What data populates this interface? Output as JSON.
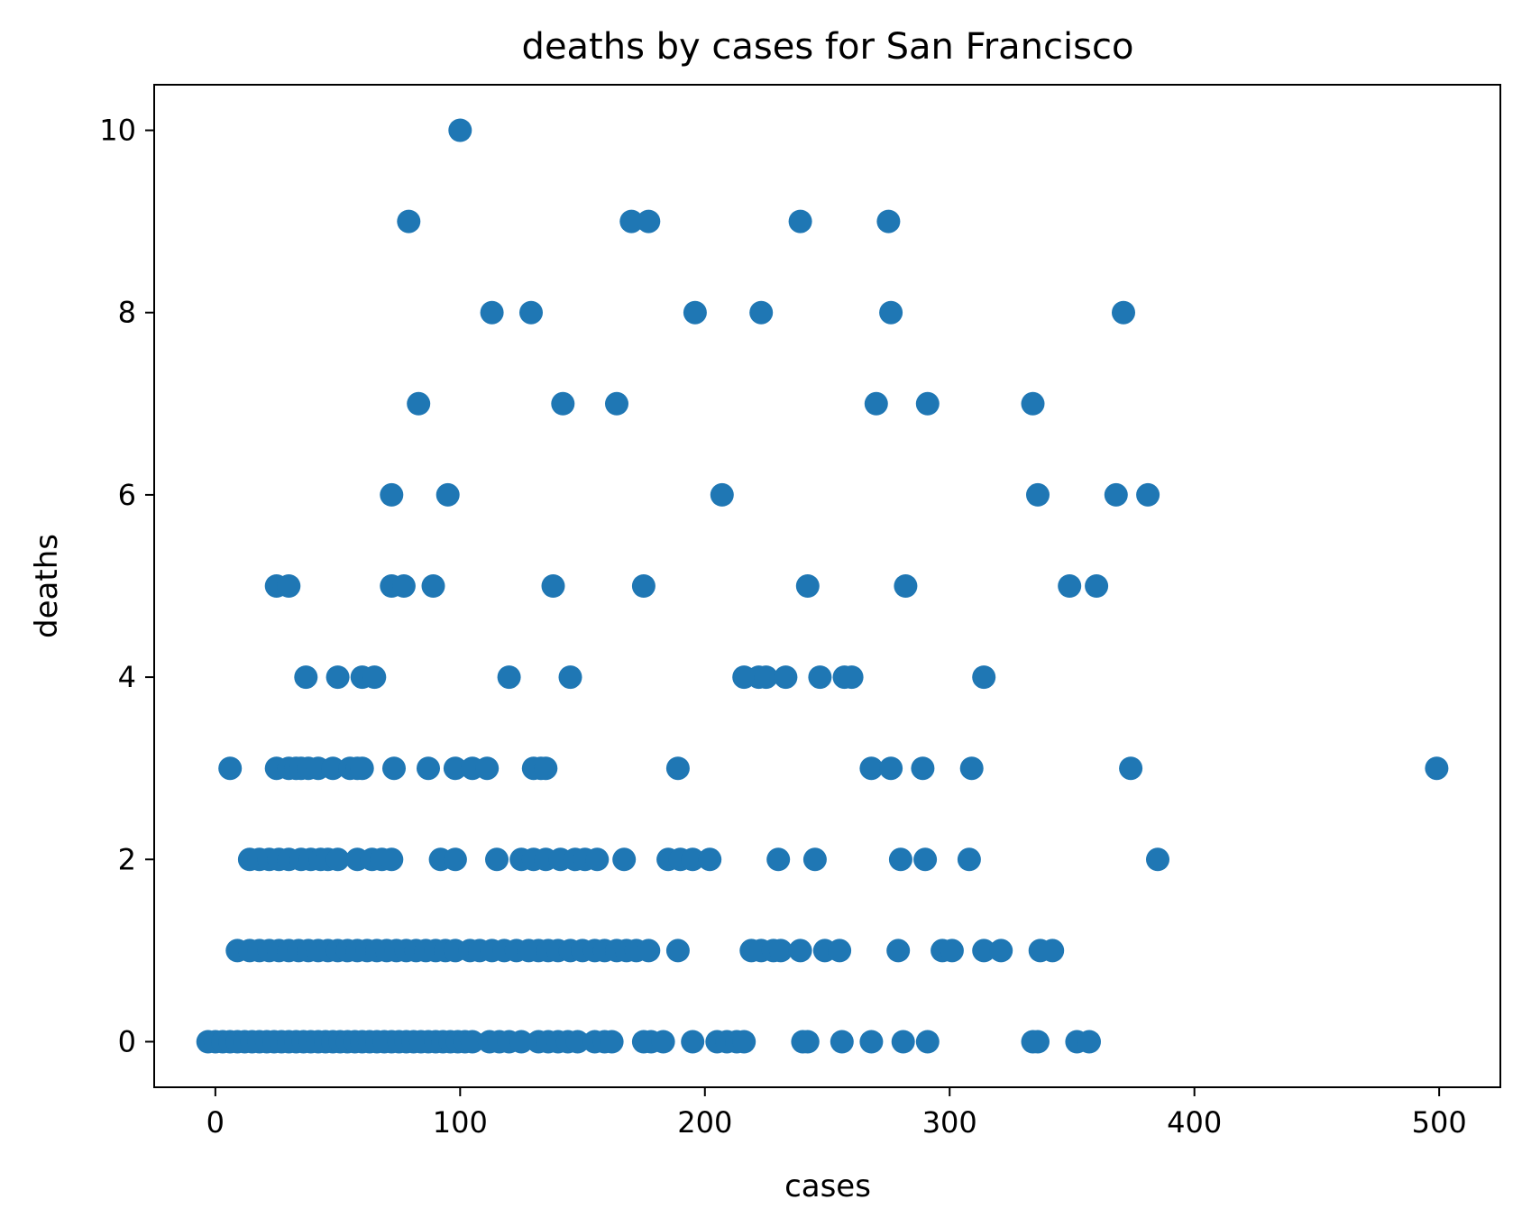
{
  "chart_data": {
    "type": "scatter",
    "title": "deaths by cases for San Francisco",
    "xlabel": "cases",
    "ylabel": "deaths",
    "xlim": [
      -25,
      525
    ],
    "ylim": [
      -0.5,
      10.5
    ],
    "xticks": [
      0,
      100,
      200,
      300,
      400,
      500
    ],
    "yticks": [
      0,
      2,
      4,
      6,
      8,
      10
    ],
    "grid": false,
    "legend": "none",
    "marker_color": "#1f77b4",
    "series": [
      {
        "points": [
          [
            100,
            10
          ],
          [
            79,
            9
          ],
          [
            170,
            9
          ],
          [
            177,
            9
          ],
          [
            239,
            9
          ],
          [
            275,
            9
          ],
          [
            113,
            8
          ],
          [
            129,
            8
          ],
          [
            196,
            8
          ],
          [
            223,
            8
          ],
          [
            276,
            8
          ],
          [
            371,
            8
          ],
          [
            83,
            7
          ],
          [
            142,
            7
          ],
          [
            164,
            7
          ],
          [
            270,
            7
          ],
          [
            291,
            7
          ],
          [
            334,
            7
          ],
          [
            72,
            6
          ],
          [
            95,
            6
          ],
          [
            207,
            6
          ],
          [
            336,
            6
          ],
          [
            368,
            6
          ],
          [
            381,
            6
          ],
          [
            25,
            5
          ],
          [
            30,
            5
          ],
          [
            72,
            5
          ],
          [
            77,
            5
          ],
          [
            89,
            5
          ],
          [
            138,
            5
          ],
          [
            175,
            5
          ],
          [
            242,
            5
          ],
          [
            282,
            5
          ],
          [
            349,
            5
          ],
          [
            360,
            5
          ],
          [
            37,
            4
          ],
          [
            50,
            4
          ],
          [
            60,
            4
          ],
          [
            65,
            4
          ],
          [
            120,
            4
          ],
          [
            145,
            4
          ],
          [
            216,
            4
          ],
          [
            222,
            4
          ],
          [
            225,
            4
          ],
          [
            233,
            4
          ],
          [
            247,
            4
          ],
          [
            257,
            4
          ],
          [
            260,
            4
          ],
          [
            314,
            4
          ],
          [
            6,
            3
          ],
          [
            25,
            3
          ],
          [
            30,
            3
          ],
          [
            33,
            3
          ],
          [
            35,
            3
          ],
          [
            38,
            3
          ],
          [
            42,
            3
          ],
          [
            48,
            3
          ],
          [
            55,
            3
          ],
          [
            58,
            3
          ],
          [
            60,
            3
          ],
          [
            73,
            3
          ],
          [
            87,
            3
          ],
          [
            98,
            3
          ],
          [
            105,
            3
          ],
          [
            111,
            3
          ],
          [
            130,
            3
          ],
          [
            133,
            3
          ],
          [
            135,
            3
          ],
          [
            189,
            3
          ],
          [
            268,
            3
          ],
          [
            276,
            3
          ],
          [
            289,
            3
          ],
          [
            309,
            3
          ],
          [
            374,
            3
          ],
          [
            499,
            3
          ],
          [
            14,
            2
          ],
          [
            18,
            2
          ],
          [
            22,
            2
          ],
          [
            26,
            2
          ],
          [
            30,
            2
          ],
          [
            35,
            2
          ],
          [
            39,
            2
          ],
          [
            43,
            2
          ],
          [
            46,
            2
          ],
          [
            50,
            2
          ],
          [
            58,
            2
          ],
          [
            64,
            2
          ],
          [
            68,
            2
          ],
          [
            72,
            2
          ],
          [
            92,
            2
          ],
          [
            98,
            2
          ],
          [
            115,
            2
          ],
          [
            125,
            2
          ],
          [
            130,
            2
          ],
          [
            135,
            2
          ],
          [
            141,
            2
          ],
          [
            147,
            2
          ],
          [
            151,
            2
          ],
          [
            156,
            2
          ],
          [
            167,
            2
          ],
          [
            185,
            2
          ],
          [
            190,
            2
          ],
          [
            195,
            2
          ],
          [
            202,
            2
          ],
          [
            230,
            2
          ],
          [
            245,
            2
          ],
          [
            280,
            2
          ],
          [
            290,
            2
          ],
          [
            308,
            2
          ],
          [
            385,
            2
          ],
          [
            9,
            1
          ],
          [
            14,
            1
          ],
          [
            18,
            1
          ],
          [
            22,
            1
          ],
          [
            26,
            1
          ],
          [
            30,
            1
          ],
          [
            34,
            1
          ],
          [
            38,
            1
          ],
          [
            42,
            1
          ],
          [
            46,
            1
          ],
          [
            50,
            1
          ],
          [
            54,
            1
          ],
          [
            58,
            1
          ],
          [
            62,
            1
          ],
          [
            66,
            1
          ],
          [
            70,
            1
          ],
          [
            74,
            1
          ],
          [
            78,
            1
          ],
          [
            82,
            1
          ],
          [
            86,
            1
          ],
          [
            90,
            1
          ],
          [
            94,
            1
          ],
          [
            98,
            1
          ],
          [
            104,
            1
          ],
          [
            108,
            1
          ],
          [
            113,
            1
          ],
          [
            118,
            1
          ],
          [
            123,
            1
          ],
          [
            128,
            1
          ],
          [
            132,
            1
          ],
          [
            136,
            1
          ],
          [
            140,
            1
          ],
          [
            145,
            1
          ],
          [
            150,
            1
          ],
          [
            155,
            1
          ],
          [
            159,
            1
          ],
          [
            164,
            1
          ],
          [
            168,
            1
          ],
          [
            172,
            1
          ],
          [
            177,
            1
          ],
          [
            189,
            1
          ],
          [
            219,
            1
          ],
          [
            223,
            1
          ],
          [
            228,
            1
          ],
          [
            231,
            1
          ],
          [
            239,
            1
          ],
          [
            249,
            1
          ],
          [
            255,
            1
          ],
          [
            279,
            1
          ],
          [
            297,
            1
          ],
          [
            301,
            1
          ],
          [
            314,
            1
          ],
          [
            321,
            1
          ],
          [
            337,
            1
          ],
          [
            342,
            1
          ],
          [
            -3,
            0
          ],
          [
            0,
            0
          ],
          [
            3,
            0
          ],
          [
            6,
            0
          ],
          [
            9,
            0
          ],
          [
            12,
            0
          ],
          [
            15,
            0
          ],
          [
            18,
            0
          ],
          [
            21,
            0
          ],
          [
            24,
            0
          ],
          [
            27,
            0
          ],
          [
            30,
            0
          ],
          [
            33,
            0
          ],
          [
            36,
            0
          ],
          [
            39,
            0
          ],
          [
            42,
            0
          ],
          [
            45,
            0
          ],
          [
            48,
            0
          ],
          [
            51,
            0
          ],
          [
            54,
            0
          ],
          [
            57,
            0
          ],
          [
            60,
            0
          ],
          [
            63,
            0
          ],
          [
            66,
            0
          ],
          [
            69,
            0
          ],
          [
            72,
            0
          ],
          [
            75,
            0
          ],
          [
            78,
            0
          ],
          [
            81,
            0
          ],
          [
            84,
            0
          ],
          [
            87,
            0
          ],
          [
            90,
            0
          ],
          [
            93,
            0
          ],
          [
            96,
            0
          ],
          [
            99,
            0
          ],
          [
            102,
            0
          ],
          [
            105,
            0
          ],
          [
            112,
            0
          ],
          [
            116,
            0
          ],
          [
            120,
            0
          ],
          [
            125,
            0
          ],
          [
            132,
            0
          ],
          [
            136,
            0
          ],
          [
            140,
            0
          ],
          [
            144,
            0
          ],
          [
            148,
            0
          ],
          [
            155,
            0
          ],
          [
            159,
            0
          ],
          [
            162,
            0
          ],
          [
            175,
            0
          ],
          [
            178,
            0
          ],
          [
            183,
            0
          ],
          [
            195,
            0
          ],
          [
            205,
            0
          ],
          [
            209,
            0
          ],
          [
            213,
            0
          ],
          [
            216,
            0
          ],
          [
            240,
            0
          ],
          [
            242,
            0
          ],
          [
            256,
            0
          ],
          [
            268,
            0
          ],
          [
            281,
            0
          ],
          [
            291,
            0
          ],
          [
            334,
            0
          ],
          [
            336,
            0
          ],
          [
            352,
            0
          ],
          [
            357,
            0
          ]
        ]
      }
    ]
  }
}
